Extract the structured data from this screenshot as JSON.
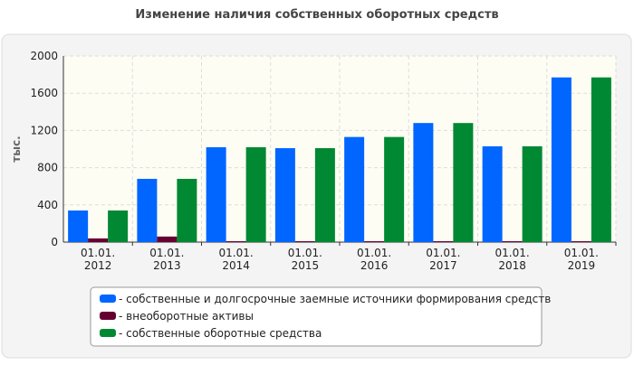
{
  "chart_data": {
    "type": "bar",
    "title": "Изменение наличия собственных оборотных средств",
    "y_label": "тыс.",
    "categories": [
      "01.01.2012",
      "01.01.2013",
      "01.01.2014",
      "01.01.2015",
      "01.01.2016",
      "01.01.2017",
      "01.01.2018",
      "01.01.2019"
    ],
    "series": [
      {
        "name": "- собственные и долгосрочные заемные источники формирования средств",
        "color": "#0066ff",
        "values": [
          340,
          680,
          1020,
          1010,
          1130,
          1280,
          1030,
          1770
        ]
      },
      {
        "name": "- внеоборотные активы",
        "color": "#660033",
        "values": [
          40,
          60,
          10,
          10,
          10,
          10,
          10,
          10
        ]
      },
      {
        "name": "- собственные оборотные средства",
        "color": "#008833",
        "values": [
          340,
          680,
          1020,
          1010,
          1130,
          1280,
          1030,
          1770
        ]
      }
    ],
    "ylim": [
      0,
      2000
    ],
    "yticks": [
      0,
      400,
      800,
      1200,
      1600,
      2000
    ],
    "grid": true
  }
}
